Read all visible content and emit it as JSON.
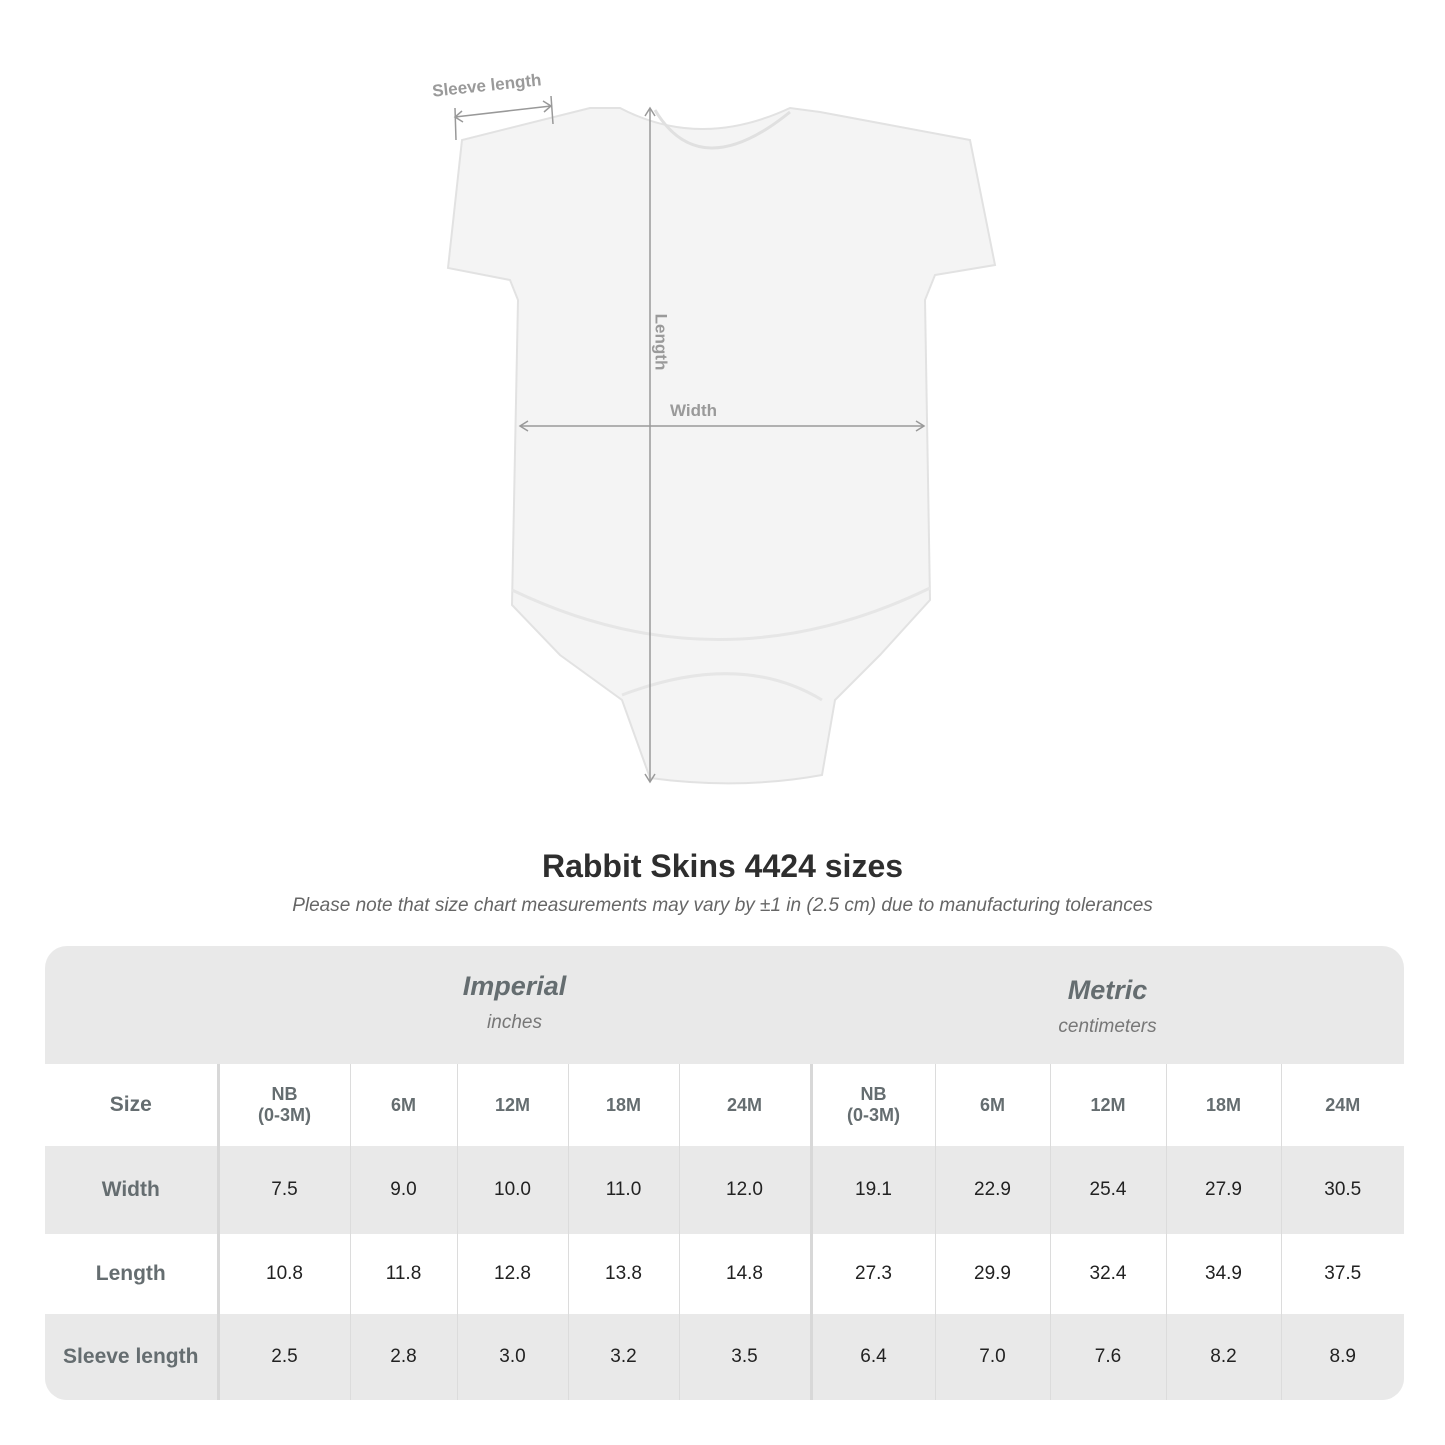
{
  "diagram": {
    "sleeve_label": "Sleeve length",
    "length_label": "Length",
    "width_label": "Width"
  },
  "title": "Rabbit Skins 4424 sizes",
  "note": "Please note that size chart measurements may vary by ±1 in (2.5 cm) due to manufacturing tolerances",
  "table": {
    "imperial": {
      "title": "Imperial",
      "unit": "inches"
    },
    "metric": {
      "title": "Metric",
      "unit": "centimeters"
    },
    "size_label": "Size",
    "sizes": [
      "NB\n(0-3M)",
      "6M",
      "12M",
      "18M",
      "24M",
      "NB\n(0-3M)",
      "6M",
      "12M",
      "18M",
      "24M"
    ],
    "rows": [
      {
        "label": "Width",
        "values": [
          "7.5",
          "9.0",
          "10.0",
          "11.0",
          "12.0",
          "19.1",
          "22.9",
          "25.4",
          "27.9",
          "30.5"
        ]
      },
      {
        "label": "Length",
        "values": [
          "10.8",
          "11.8",
          "12.8",
          "13.8",
          "14.8",
          "27.3",
          "29.9",
          "32.4",
          "34.9",
          "37.5"
        ]
      },
      {
        "label": "Sleeve length",
        "values": [
          "2.5",
          "2.8",
          "3.0",
          "3.2",
          "3.5",
          "6.4",
          "7.0",
          "7.6",
          "8.2",
          "8.9"
        ]
      }
    ]
  }
}
